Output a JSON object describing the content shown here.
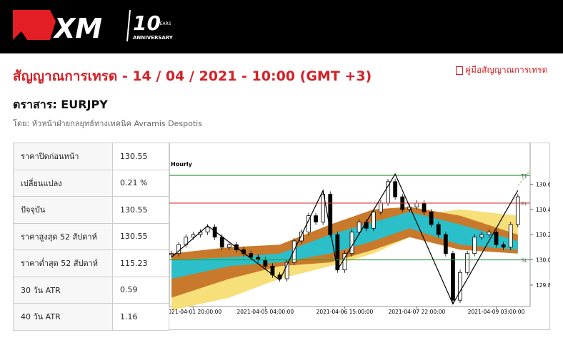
{
  "header": {
    "logo": {
      "brand": "XM",
      "years": "10",
      "years_word": "YEARS",
      "anniversary": "ANNIVERSARY"
    }
  },
  "title": "สัญญาณการเทรด - 14 / 04 / 2021 - 10:00 (GMT +3)",
  "guide_link": "คู่มือสัญญาณการเทรด",
  "instrument": "ตราสาร: EURJPY",
  "author": "โดย: หัวหน้าฝ่ายกลยุทธ์ทางเทคนิค Avramis Despotis",
  "table": {
    "rows": [
      [
        "ราคาปิดก่อนหน้า",
        "130.55"
      ],
      [
        "เปลี่ยนแปลง",
        "0.21 %"
      ],
      [
        "ปัจจุบัน",
        "130.55"
      ],
      [
        "ราคาสูงสุด 52 สัปดาห์",
        "130.55"
      ],
      [
        "ราคาต่ำสุด 52 สัปดาห์",
        "115.23"
      ],
      [
        "30 วัน ATR",
        "0.59"
      ],
      [
        "40 วัน ATR",
        "1.16"
      ]
    ]
  },
  "chart_data": {
    "type": "candlestick",
    "subtitle": "Hourly",
    "x": [
      0,
      1,
      2,
      3,
      4,
      5,
      6,
      7,
      8,
      9,
      10,
      11,
      12,
      13,
      14,
      15,
      16,
      17,
      18,
      19,
      20,
      21,
      22,
      23,
      24,
      25,
      26,
      27,
      28,
      29,
      30,
      31,
      32,
      33,
      34,
      35,
      36,
      37,
      38,
      39,
      40,
      41,
      42,
      43,
      44,
      45,
      46,
      47,
      48
    ],
    "values": [
      130.05,
      130.12,
      130.18,
      130.2,
      130.22,
      130.26,
      130.18,
      130.1,
      130.12,
      130.08,
      130.05,
      130.02,
      130.0,
      129.95,
      129.88,
      129.85,
      129.98,
      130.15,
      130.22,
      130.35,
      130.3,
      130.52,
      130.2,
      129.92,
      130.05,
      130.22,
      130.3,
      130.25,
      130.38,
      130.45,
      130.62,
      130.5,
      130.4,
      130.42,
      130.45,
      130.38,
      130.28,
      130.2,
      130.05,
      129.68,
      129.9,
      130.05,
      130.18,
      130.2,
      130.22,
      130.12,
      130.1,
      130.28,
      130.5
    ],
    "xlim": [
      -0.3,
      49.7
    ],
    "ylim": [
      129.63,
      130.93
    ],
    "xticks": [
      {
        "value": 3,
        "label": "2021-04-01 20:00:00"
      },
      {
        "value": 13,
        "label": "2021-04-05 04:00:00"
      },
      {
        "value": 24,
        "label": "2021-04-06 15:00:00"
      },
      {
        "value": 34,
        "label": "2021-04-07 22:00:00"
      },
      {
        "value": 45,
        "label": "2021-04-09 03:00:00"
      }
    ],
    "yticks": [
      {
        "value": 130.6,
        "label": "130.60"
      },
      {
        "value": 130.4,
        "label": "130.40"
      },
      {
        "value": 130.2,
        "label": "130.20"
      },
      {
        "value": 130.0,
        "label": "130.00"
      },
      {
        "value": 129.8,
        "label": "129.80"
      }
    ],
    "bands": [
      {
        "color": "#f7df7a",
        "x": [
          0,
          8,
          15,
          22,
          28,
          33,
          40,
          48
        ],
        "upper": [
          129.75,
          129.9,
          130.02,
          130.1,
          130.2,
          130.35,
          130.4,
          130.35
        ],
        "lower": [
          129.6,
          129.7,
          129.85,
          129.95,
          130.05,
          130.18,
          130.2,
          130.1
        ]
      },
      {
        "color": "#c9792b",
        "x": [
          0,
          8,
          15,
          22,
          28,
          33,
          40,
          48
        ],
        "upper": [
          130.05,
          130.1,
          130.12,
          130.28,
          130.4,
          130.42,
          130.35,
          130.2
        ],
        "lower": [
          129.7,
          129.85,
          129.95,
          129.98,
          130.08,
          130.18,
          130.08,
          130.05
        ]
      },
      {
        "color": "#2bbfc9",
        "x": [
          0,
          8,
          15,
          22,
          28,
          33,
          40,
          48
        ],
        "upper": [
          130.0,
          130.02,
          130.05,
          130.2,
          130.3,
          130.38,
          130.28,
          130.15
        ],
        "lower": [
          129.85,
          129.95,
          129.98,
          130.05,
          130.15,
          130.25,
          130.12,
          130.08
        ]
      }
    ],
    "zigzag": {
      "x": [
        0,
        5,
        15,
        21,
        23,
        31,
        39,
        48
      ],
      "values": [
        130.02,
        130.27,
        129.84,
        130.55,
        129.92,
        130.68,
        129.65,
        130.55
      ]
    },
    "levels": [
      {
        "name": "T1",
        "value": 130.67,
        "color": "#3a9a3a"
      },
      {
        "name": "EL",
        "value": 130.45,
        "color": "#d33"
      },
      {
        "name": "SL",
        "value": 130.0,
        "color": "#3a9a3a"
      }
    ]
  }
}
